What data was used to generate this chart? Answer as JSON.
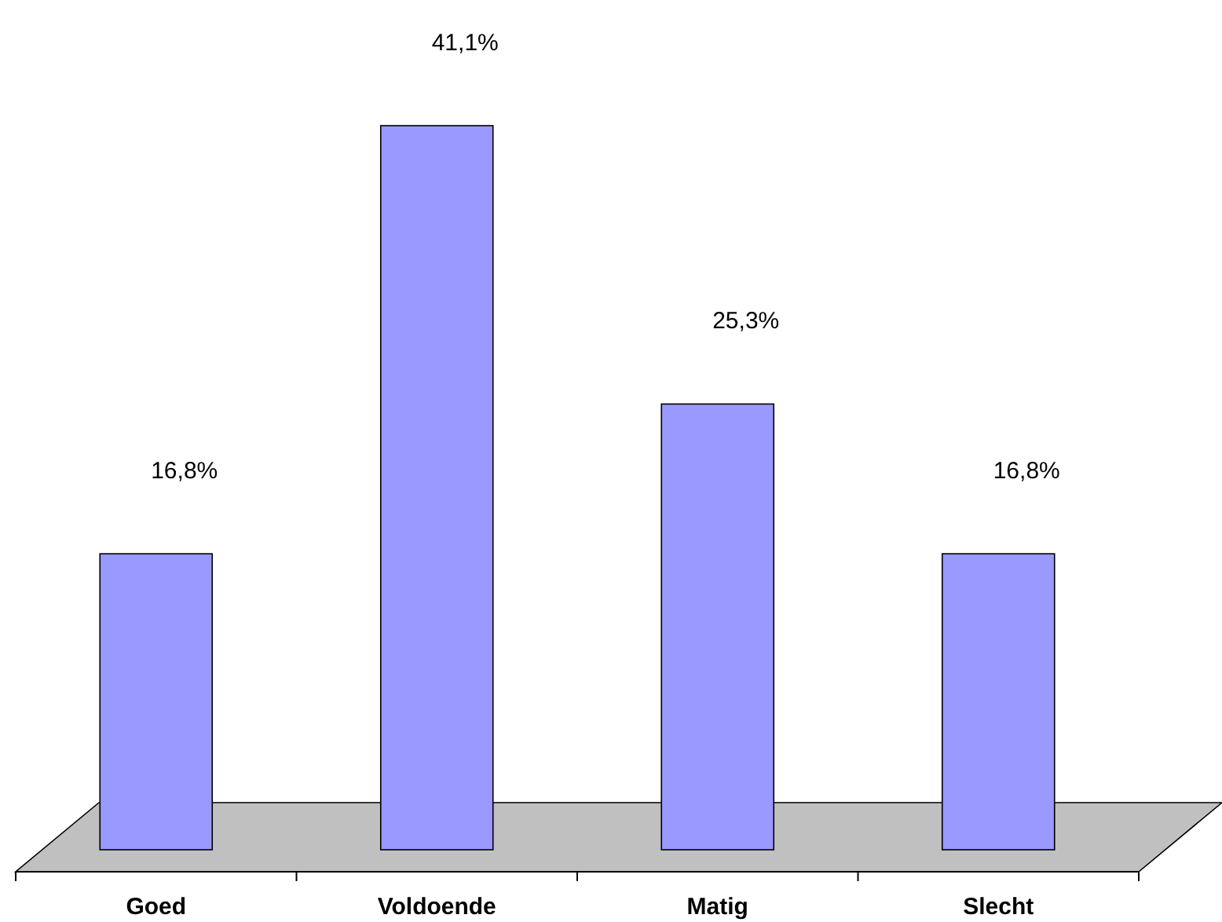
{
  "chart_data": {
    "type": "bar",
    "categories": [
      "Goed",
      "Voldoende",
      "Matig",
      "Slecht"
    ],
    "values": [
      16.8,
      41.1,
      25.3,
      16.8
    ],
    "value_labels": [
      "16,8%",
      "41,1%",
      "25,3%",
      "16,8%"
    ],
    "color": "#9999ff"
  }
}
